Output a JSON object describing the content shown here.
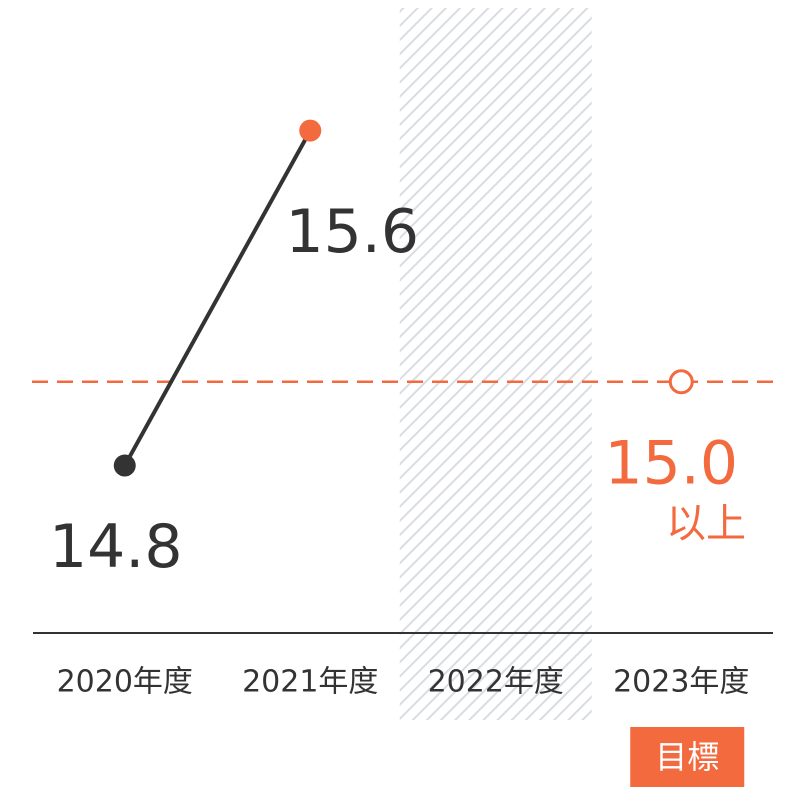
{
  "chart_data": {
    "type": "line",
    "categories": [
      "2020年度",
      "2021年度",
      "2022年度",
      "2023年度"
    ],
    "series": [
      {
        "values": [
          14.8,
          15.6,
          null,
          null
        ],
        "color": "#333333",
        "point_colors": [
          "#333333",
          "#f26a3d",
          null,
          null
        ]
      }
    ],
    "target": {
      "value": 15.0,
      "label": "15.0",
      "note": "以上",
      "tag": "目標",
      "color": "#f26a3d"
    },
    "ylim": [
      14.4,
      15.9
    ]
  }
}
